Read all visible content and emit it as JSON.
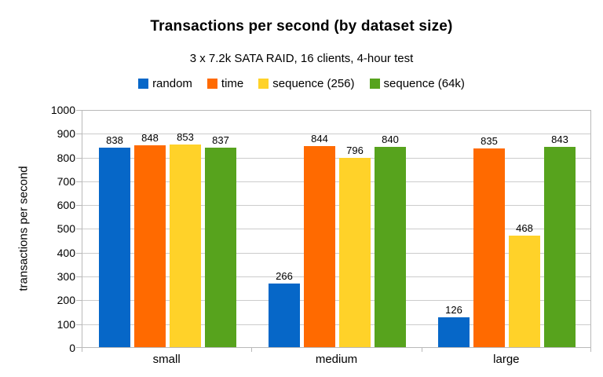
{
  "chart_data": {
    "type": "bar",
    "title": "Transactions per second (by dataset size)",
    "subtitle": "3 x 7.2k SATA RAID, 16 clients, 4-hour test",
    "categories": [
      "small",
      "medium",
      "large"
    ],
    "series": [
      {
        "name": "random",
        "color": "#0667c8",
        "values": [
          838,
          266,
          126
        ]
      },
      {
        "name": "time",
        "color": "#ff6a00",
        "values": [
          848,
          844,
          835
        ]
      },
      {
        "name": "sequence (256)",
        "color": "#ffd229",
        "values": [
          853,
          796,
          468
        ]
      },
      {
        "name": "sequence (64k)",
        "color": "#57a31d",
        "values": [
          837,
          840,
          843
        ]
      }
    ],
    "xlabel": "",
    "ylabel": "transactions per second",
    "ylim": [
      0,
      1000
    ],
    "ytick_step": 100,
    "grid": true,
    "legend_position": "top",
    "value_labels": true,
    "colors": {
      "background": "#ffffff",
      "gridline": "#cccccc",
      "axis_frame": "#b9b9b9",
      "text": "#000000"
    }
  }
}
